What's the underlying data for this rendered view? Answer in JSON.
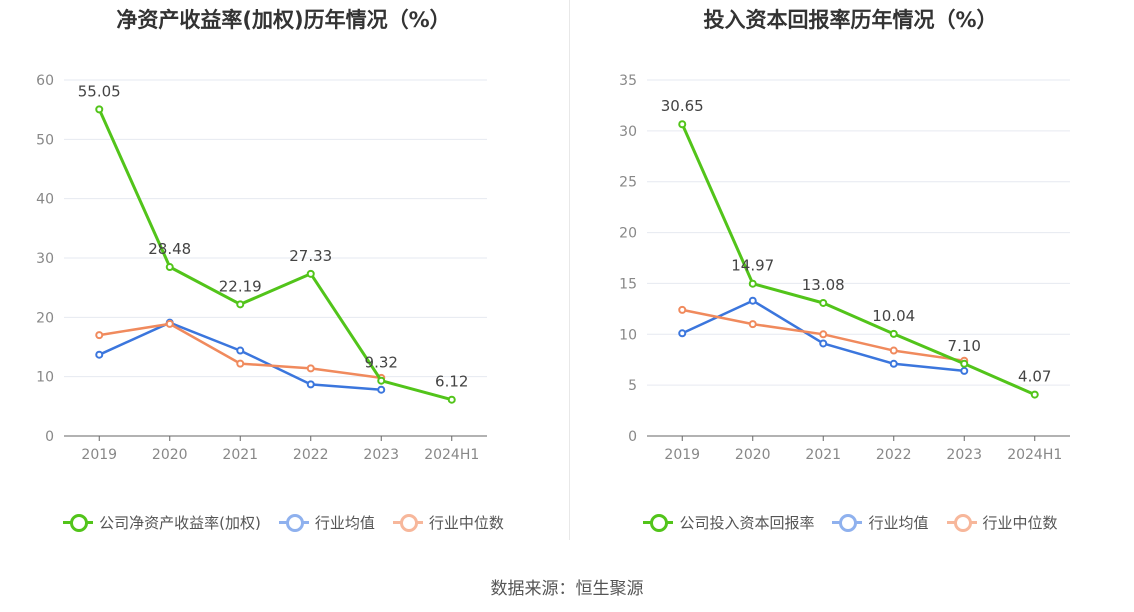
{
  "source": "数据来源：恒生聚源",
  "colors": {
    "company": "#52c41a",
    "industry_avg": "#3b76dd",
    "industry_median": "#f08a5d",
    "legend_avg": "#8fb1ee",
    "legend_median": "#f7b79b"
  },
  "chart_data": [
    {
      "type": "line",
      "title": "净资产收益率(加权)历年情况（%）",
      "categories": [
        "2019",
        "2020",
        "2021",
        "2022",
        "2023",
        "2024H1"
      ],
      "ylim": [
        0,
        60
      ],
      "yticks": [
        "0",
        "10",
        "20",
        "30",
        "40",
        "50",
        "60"
      ],
      "series": [
        {
          "name": "公司净资产收益率(加权)",
          "values": [
            55.05,
            28.48,
            22.19,
            27.33,
            9.32,
            6.12
          ],
          "labels": [
            "55.05",
            "28.48",
            "22.19",
            "27.33",
            "9.32",
            "6.12"
          ]
        },
        {
          "name": "行业均值",
          "values": [
            13.7,
            19.1,
            14.4,
            8.7,
            7.8,
            null
          ]
        },
        {
          "name": "行业中位数",
          "values": [
            17.0,
            18.9,
            12.2,
            11.4,
            9.8,
            null
          ]
        }
      ]
    },
    {
      "type": "line",
      "title": "投入资本回报率历年情况（%）",
      "categories": [
        "2019",
        "2020",
        "2021",
        "2022",
        "2023",
        "2024H1"
      ],
      "ylim": [
        0,
        35
      ],
      "yticks": [
        "0",
        "5",
        "10",
        "15",
        "20",
        "25",
        "30",
        "35"
      ],
      "series": [
        {
          "name": "公司投入资本回报率",
          "values": [
            30.65,
            14.97,
            13.08,
            10.04,
            7.1,
            4.07
          ],
          "labels": [
            "30.65",
            "14.97",
            "13.08",
            "10.04",
            "7.10",
            "4.07"
          ]
        },
        {
          "name": "行业均值",
          "values": [
            10.1,
            13.3,
            9.1,
            7.1,
            6.4,
            null
          ]
        },
        {
          "name": "行业中位数",
          "values": [
            12.4,
            11.0,
            10.0,
            8.4,
            7.4,
            null
          ]
        }
      ]
    }
  ]
}
